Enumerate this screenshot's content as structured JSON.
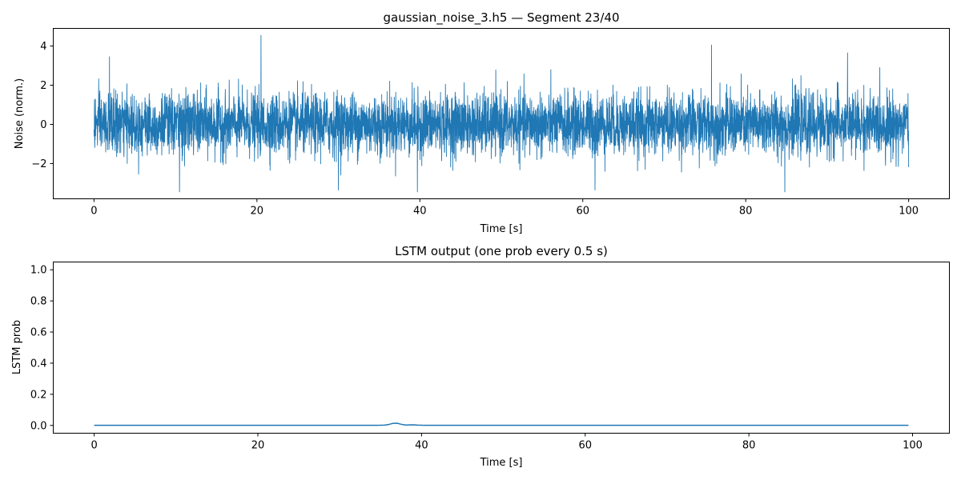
{
  "chart_data": [
    {
      "type": "line",
      "title": "gaussian_noise_3.h5 — Segment 23/40",
      "xlabel": "Time [s]",
      "ylabel": "Noise (norm.)",
      "xlim": [
        -5,
        105
      ],
      "ylim": [
        -3.8,
        4.9
      ],
      "xticks": [
        0,
        20,
        40,
        60,
        80,
        100
      ],
      "yticks": [
        -2,
        0,
        2,
        4
      ],
      "xtick_labels": [
        "0",
        "20",
        "40",
        "60",
        "80",
        "100"
      ],
      "ytick_labels": [
        "−2",
        "0",
        "2",
        "4"
      ],
      "color": "#1f77b4",
      "series": [
        {
          "name": "noise",
          "description": "zero-mean gaussian noise, std≈0.8, sampled densely over 0–100 s",
          "x_range": [
            0,
            100
          ],
          "peaks": [
            {
              "x": 20.5,
              "y": 4.55
            },
            {
              "x": 75.8,
              "y": 4.05
            },
            {
              "x": 1.9,
              "y": 3.45
            },
            {
              "x": 92.5,
              "y": 3.65
            },
            {
              "x": 10.5,
              "y": -3.45
            },
            {
              "x": 39.7,
              "y": -3.45
            },
            {
              "x": 84.8,
              "y": -3.45
            },
            {
              "x": 61.5,
              "y": -3.35
            },
            {
              "x": 30.0,
              "y": -3.35
            }
          ]
        }
      ]
    },
    {
      "type": "line",
      "title": "LSTM output (one prob every 0.5 s)",
      "xlabel": "Time [s]",
      "ylabel": "LSTM prob",
      "xlim": [
        -5,
        104.5
      ],
      "ylim": [
        -0.05,
        1.05
      ],
      "xticks": [
        0,
        20,
        40,
        60,
        80,
        100
      ],
      "yticks": [
        0.0,
        0.2,
        0.4,
        0.6,
        0.8,
        1.0
      ],
      "xtick_labels": [
        "0",
        "20",
        "40",
        "60",
        "80",
        "100"
      ],
      "ytick_labels": [
        "0.0",
        "0.2",
        "0.4",
        "0.6",
        "0.8",
        "1.0"
      ],
      "color": "#1f77b4",
      "series": [
        {
          "name": "LSTM prob",
          "x_start": 0,
          "x_step": 0.5,
          "x_end": 99.5,
          "baseline": 0.001,
          "bumps": [
            {
              "center": 36.8,
              "height": 0.014,
              "width": 0.8
            },
            {
              "center": 38.9,
              "height": 0.003,
              "width": 0.6
            }
          ]
        }
      ]
    }
  ]
}
